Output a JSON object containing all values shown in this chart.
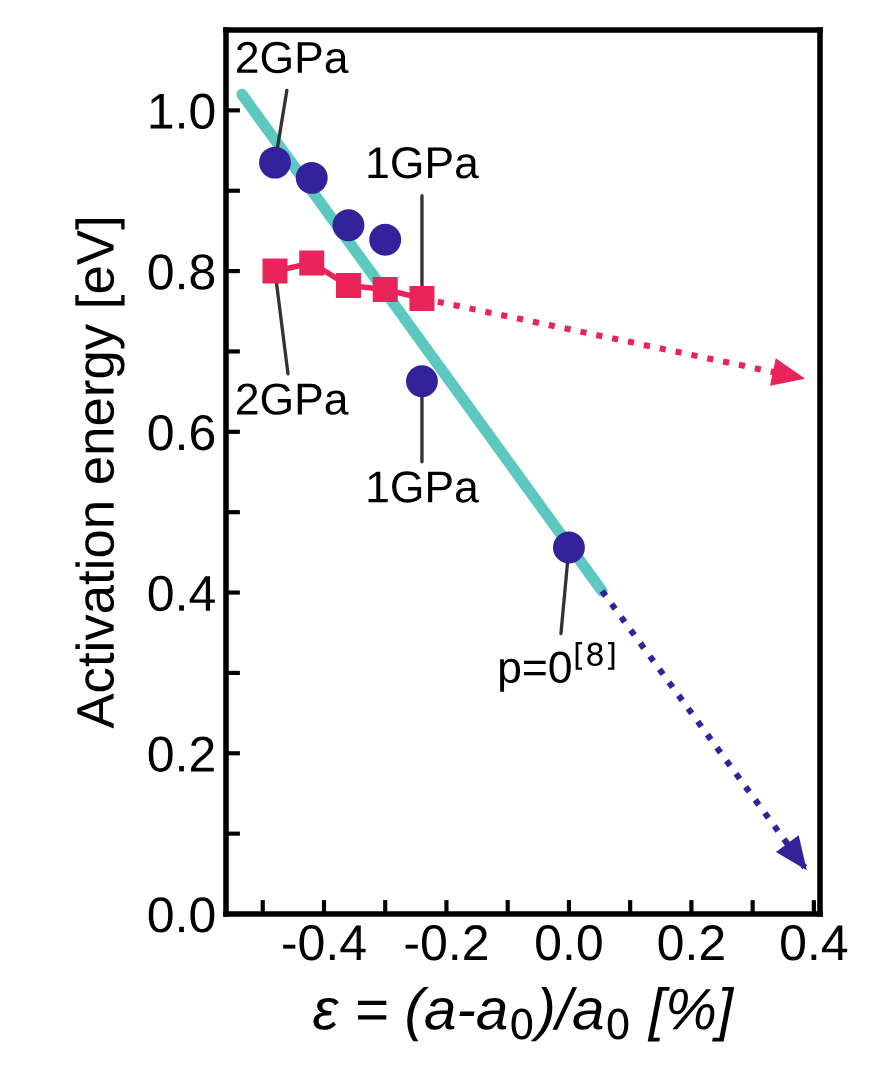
{
  "chart_data": {
    "type": "scatter",
    "xlabel": "ε = (a-a$_{0}$)/a$_{0}$ [%]",
    "ylabel": "Activation energy [eV]",
    "xlim": [
      -0.56,
      0.41
    ],
    "ylim": [
      0,
      1.1
    ],
    "xticks": [
      {
        "value": -0.5,
        "label": null
      },
      -0.4,
      {
        "value": -0.3,
        "label": null
      },
      -0.2,
      {
        "value": -0.1,
        "label": null
      },
      {
        "value": 0,
        "label": "0.0"
      },
      {
        "value": 0.1,
        "label": null
      },
      0.2,
      {
        "value": 0.3,
        "label": null
      },
      0.4
    ],
    "yticks": [
      {
        "value": 0,
        "label": "0.0"
      },
      {
        "value": 0.1,
        "label": null
      },
      0.2,
      {
        "value": 0.3,
        "label": null
      },
      0.4,
      {
        "value": 0.5,
        "label": null
      },
      0.6,
      {
        "value": 0.7,
        "label": null
      },
      0.8,
      {
        "value": 0.9,
        "label": null
      },
      {
        "value": 1,
        "label": "1.0"
      }
    ],
    "grid": false,
    "series": [
      {
        "type": "line",
        "color": "#5cc8c0",
        "line_style": "solid",
        "x": [
          -0.534,
          0.054
        ],
        "values": [
          1.02,
          0.402
        ]
      },
      {
        "type": "line",
        "color": "#e8245a",
        "line_style": "dotted",
        "x": [
          -0.24,
          0.38
        ],
        "values": [
          0.766,
          0.667
        ]
      },
      {
        "type": "line",
        "color": "#33229a",
        "line_style": "dotted",
        "x": [
          0.054,
          0.385
        ],
        "values": [
          0.402,
          0.058
        ]
      },
      {
        "type": "line",
        "color": "#e8245a",
        "line_style": "solid",
        "marker": "square",
        "x": [
          -0.48,
          -0.42,
          -0.36,
          -0.3,
          -0.24
        ],
        "values": [
          0.8,
          0.81,
          0.782,
          0.777,
          0.766
        ]
      },
      {
        "color": "#33229a",
        "marker": "circle",
        "x": [
          -0.48,
          -0.42,
          -0.36,
          -0.3,
          -0.24,
          0.0
        ],
        "values": [
          0.935,
          0.916,
          0.857,
          0.839,
          0.663,
          0.456
        ]
      }
    ],
    "annotations": [
      {
        "text": "2GPa",
        "x": -0.48,
        "y": 0.935
      },
      {
        "text": "1GPa",
        "x": -0.24,
        "y": 0.766
      },
      {
        "text": "2GPa",
        "x": -0.48,
        "y": 0.8
      },
      {
        "text": "1GPa",
        "x": -0.24,
        "y": 0.663
      },
      {
        "text": "p=0$^{[8]}$",
        "x": 0.0,
        "y": 0.456
      }
    ]
  }
}
